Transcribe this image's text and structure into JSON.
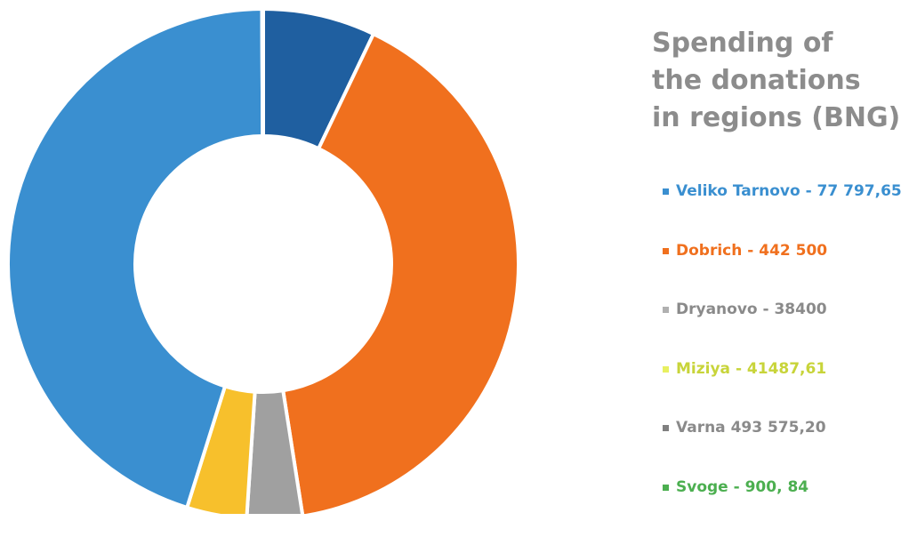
{
  "chart_data": {
    "type": "pie",
    "donut": true,
    "title_lines": [
      "Spending of",
      "the donations",
      "in regions (BNG)"
    ],
    "title": "Spending of the donations in regions (BNG)",
    "series": [
      {
        "label": "Veliko Tarnovo - 77 797,65",
        "value": 77797.65,
        "color": "#1f5fa0"
      },
      {
        "label": "Dobrich - 442 500",
        "value": 442500,
        "color": "#f0701e"
      },
      {
        "label": "Dryanovo - 38400",
        "value": 38400,
        "color": "#a0a0a0"
      },
      {
        "label": "Miziya - 41487,61",
        "value": 41487.61,
        "color": "#f7c02c"
      },
      {
        "label": "Varna 493 575,20",
        "value": 493575.2,
        "color": "#3a8fd0"
      },
      {
        "label": "Svoge - 900, 84",
        "value": 900.84,
        "color": "#4caf50"
      }
    ],
    "legend_position": "right",
    "legend_text_colors": [
      "#3a8fd0",
      "#f0701e",
      "#8a8a8a",
      "#c8d43a",
      "#8a8a8a",
      "#4caf50"
    ],
    "legend_swatch_colors": [
      "#3a8fd0",
      "#f0701e",
      "#b0b0b0",
      "#e8f060",
      "#808080",
      "#4caf50"
    ]
  }
}
